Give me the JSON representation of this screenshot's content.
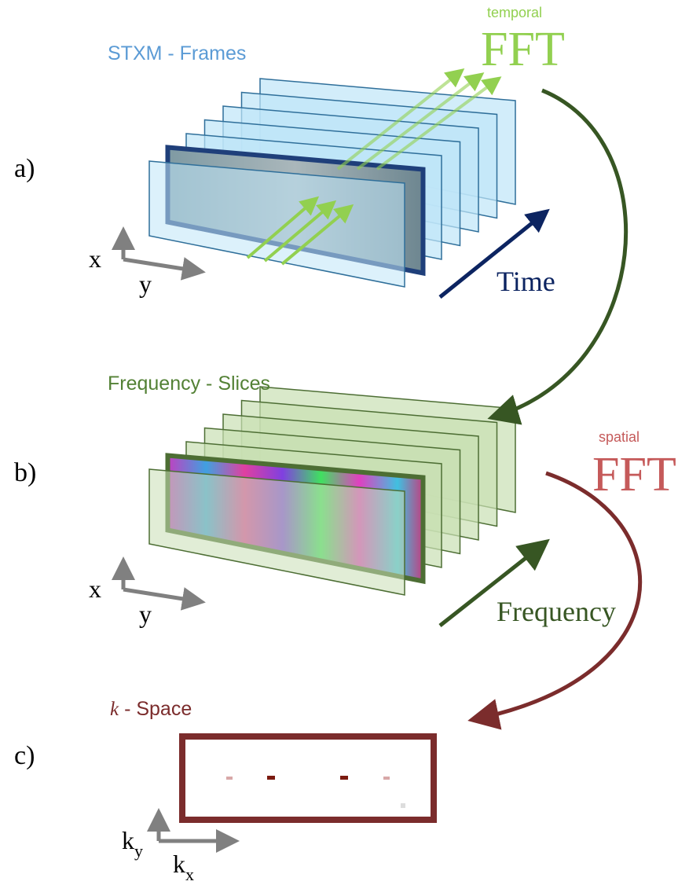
{
  "panels": [
    {
      "label": "a)",
      "title": "STXM - Frames",
      "axis_x": "x",
      "axis_y": "y",
      "arrow_label": "Time"
    },
    {
      "label": "b)",
      "title": "Frequency - Slices",
      "axis_x": "x",
      "axis_y": "y",
      "arrow_label": "Frequency"
    },
    {
      "label": "c)",
      "title_symbol": "k",
      "title": "- Space",
      "axis_y_base": "k",
      "axis_y_sub": "y",
      "axis_x_base": "k",
      "axis_x_sub": "x"
    }
  ],
  "transforms": [
    {
      "qualifier": "temporal",
      "name": "FFT"
    },
    {
      "qualifier": "spatial",
      "name": "FFT"
    }
  ]
}
